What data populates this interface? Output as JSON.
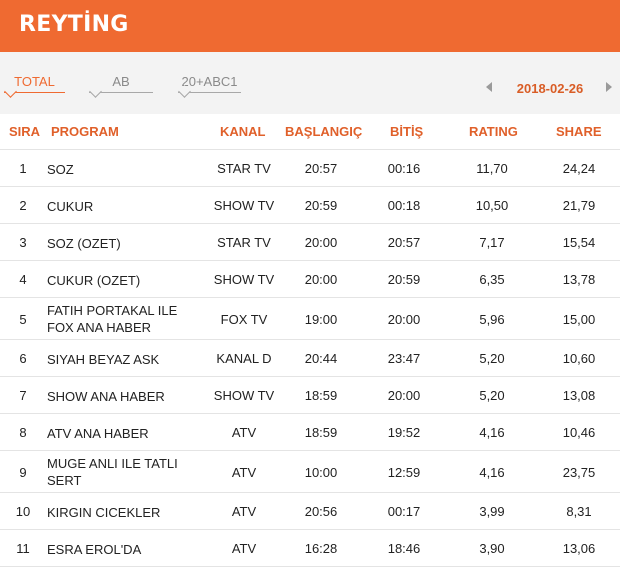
{
  "header": {
    "title": "REYTİNG"
  },
  "tabs": [
    {
      "label": "TOTAL",
      "active": true
    },
    {
      "label": "AB",
      "active": false
    },
    {
      "label": "20+ABC1",
      "active": false
    }
  ],
  "date": {
    "label": "2018-02-26",
    "prev_icon": "triangle-left",
    "next_icon": "triangle-right"
  },
  "colors": {
    "accent": "#ef6a31",
    "tabbar_bg": "#f3f3f3",
    "header_text": "#e0602a"
  },
  "table": {
    "columns": [
      "SIRA",
      "PROGRAM",
      "KANAL",
      "BAŞLANGIÇ",
      "BİTİŞ",
      "RATING",
      "SHARE"
    ],
    "rows": [
      {
        "sira": "1",
        "program": "SOZ",
        "kanal": "STAR TV",
        "start": "20:57",
        "end": "00:16",
        "rating": "11,70",
        "share": "24,24"
      },
      {
        "sira": "2",
        "program": "CUKUR",
        "kanal": "SHOW TV",
        "start": "20:59",
        "end": "00:18",
        "rating": "10,50",
        "share": "21,79"
      },
      {
        "sira": "3",
        "program": "SOZ (OZET)",
        "kanal": "STAR TV",
        "start": "20:00",
        "end": "20:57",
        "rating": "7,17",
        "share": "15,54"
      },
      {
        "sira": "4",
        "program": "CUKUR (OZET)",
        "kanal": "SHOW TV",
        "start": "20:00",
        "end": "20:59",
        "rating": "6,35",
        "share": "13,78"
      },
      {
        "sira": "5",
        "program": "FATIH PORTAKAL ILE FOX ANA HABER",
        "kanal": "FOX TV",
        "start": "19:00",
        "end": "20:00",
        "rating": "5,96",
        "share": "15,00"
      },
      {
        "sira": "6",
        "program": "SIYAH BEYAZ ASK",
        "kanal": "KANAL D",
        "start": "20:44",
        "end": "23:47",
        "rating": "5,20",
        "share": "10,60"
      },
      {
        "sira": "7",
        "program": "SHOW ANA HABER",
        "kanal": "SHOW TV",
        "start": "18:59",
        "end": "20:00",
        "rating": "5,20",
        "share": "13,08"
      },
      {
        "sira": "8",
        "program": "ATV ANA HABER",
        "kanal": "ATV",
        "start": "18:59",
        "end": "19:52",
        "rating": "4,16",
        "share": "10,46"
      },
      {
        "sira": "9",
        "program": "MUGE ANLI ILE TATLI SERT",
        "kanal": "ATV",
        "start": "10:00",
        "end": "12:59",
        "rating": "4,16",
        "share": "23,75"
      },
      {
        "sira": "10",
        "program": "KIRGIN CICEKLER",
        "kanal": "ATV",
        "start": "20:56",
        "end": "00:17",
        "rating": "3,99",
        "share": "8,31"
      },
      {
        "sira": "11",
        "program": "ESRA EROL'DA",
        "kanal": "ATV",
        "start": "16:28",
        "end": "18:46",
        "rating": "3,90",
        "share": "13,06"
      }
    ]
  }
}
